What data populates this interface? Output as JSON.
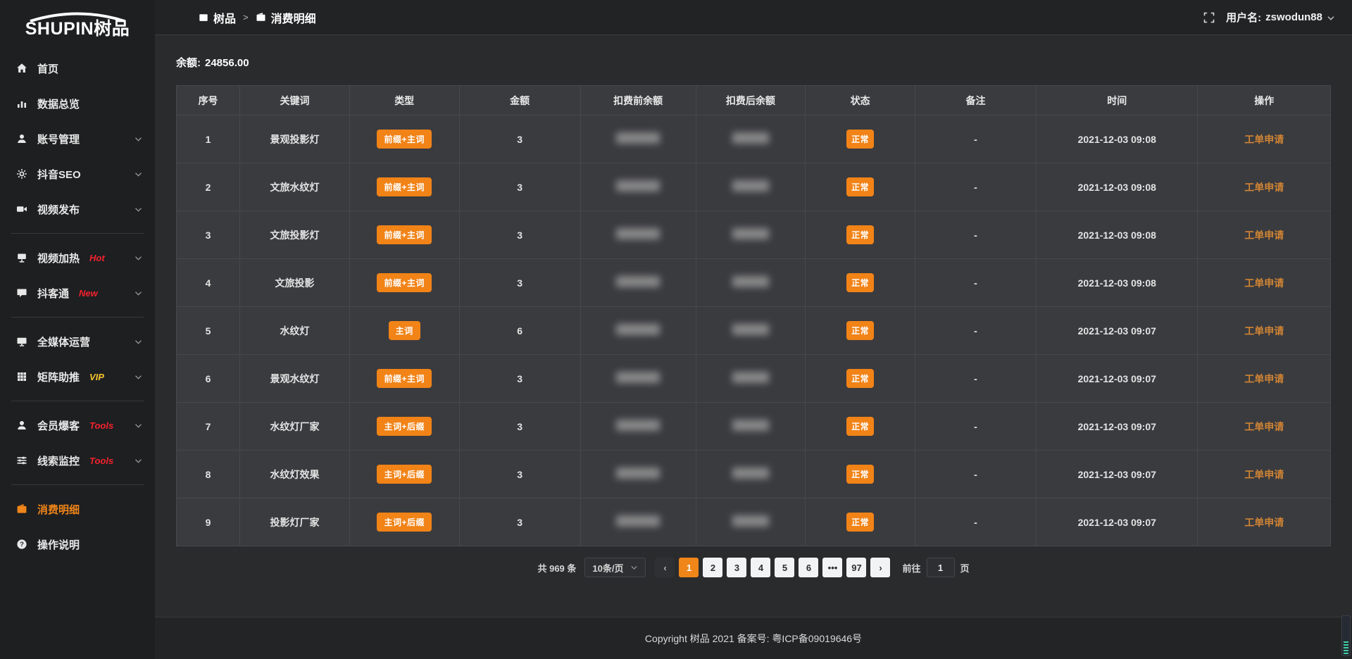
{
  "app": {
    "logo_text": "SHUPIN",
    "logo_cn": "树品"
  },
  "topbar": {
    "breadcrumb": [
      {
        "label": "树品"
      },
      {
        "label": "消费明细"
      }
    ],
    "separator": ">",
    "username_label": "用户名:",
    "username": "zswodun88"
  },
  "sidebar": {
    "items": [
      {
        "id": "home",
        "icon": "home-icon",
        "label": "首页"
      },
      {
        "id": "data-overview",
        "icon": "chart-icon",
        "label": "数据总览"
      },
      {
        "id": "account-manage",
        "icon": "user-icon",
        "label": "账号管理",
        "chevron": true
      },
      {
        "id": "douyin-seo",
        "icon": "gear-icon",
        "label": "抖音SEO",
        "chevron": true
      },
      {
        "id": "video-publish",
        "icon": "video-icon",
        "label": "视频发布",
        "chevron": true
      },
      {
        "type": "divider"
      },
      {
        "id": "video-heat",
        "icon": "display-icon",
        "label": "视频加热",
        "badge": "Hot",
        "badge_color": "#f5222d",
        "chevron": true
      },
      {
        "id": "douketong",
        "icon": "comment-icon",
        "label": "抖客通",
        "badge": "New",
        "badge_color": "#f5222d",
        "chevron": true
      },
      {
        "type": "divider"
      },
      {
        "id": "media-operation",
        "icon": "monitor-icon",
        "label": "全媒体运营",
        "chevron": true
      },
      {
        "id": "matrix-boost",
        "icon": "grid-icon",
        "label": "矩阵助推",
        "badge": "VIP",
        "badge_color": "#f7c52c",
        "chevron": true
      },
      {
        "type": "divider"
      },
      {
        "id": "member-baoke",
        "icon": "user-icon",
        "label": "会员爆客",
        "badge": "Tools",
        "badge_color": "#f5222d",
        "chevron": true
      },
      {
        "id": "clue-monitor",
        "icon": "sliders-icon",
        "label": "线索监控",
        "badge": "Tools",
        "badge_color": "#f5222d",
        "chevron": true
      },
      {
        "type": "divider"
      },
      {
        "id": "consumption-detail",
        "icon": "wallet-icon",
        "label": "消费明细",
        "active": true
      },
      {
        "id": "instructions",
        "icon": "question-icon",
        "label": "操作说明"
      }
    ]
  },
  "main": {
    "balance_label": "余额:",
    "balance_value": "24856.00",
    "table": {
      "columns": [
        "序号",
        "关键词",
        "类型",
        "金额",
        "扣费前余额",
        "扣费后余额",
        "状态",
        "备注",
        "时间",
        "操作"
      ],
      "rows": [
        {
          "index": "1",
          "keyword": "景观投影灯",
          "type": "前缀+主词",
          "amount": "3",
          "status": "正常",
          "remark": "-",
          "time": "2021-12-03 09:08",
          "action": "工单申请"
        },
        {
          "index": "2",
          "keyword": "文旅水纹灯",
          "type": "前缀+主词",
          "amount": "3",
          "status": "正常",
          "remark": "-",
          "time": "2021-12-03 09:08",
          "action": "工单申请"
        },
        {
          "index": "3",
          "keyword": "文旅投影灯",
          "type": "前缀+主词",
          "amount": "3",
          "status": "正常",
          "remark": "-",
          "time": "2021-12-03 09:08",
          "action": "工单申请"
        },
        {
          "index": "4",
          "keyword": "文旅投影",
          "type": "前缀+主词",
          "amount": "3",
          "status": "正常",
          "remark": "-",
          "time": "2021-12-03 09:08",
          "action": "工单申请"
        },
        {
          "index": "5",
          "keyword": "水纹灯",
          "type": "主词",
          "amount": "6",
          "status": "正常",
          "remark": "-",
          "time": "2021-12-03 09:07",
          "action": "工单申请"
        },
        {
          "index": "6",
          "keyword": "景观水纹灯",
          "type": "前缀+主词",
          "amount": "3",
          "status": "正常",
          "remark": "-",
          "time": "2021-12-03 09:07",
          "action": "工单申请"
        },
        {
          "index": "7",
          "keyword": "水纹灯厂家",
          "type": "主词+后缀",
          "amount": "3",
          "status": "正常",
          "remark": "-",
          "time": "2021-12-03 09:07",
          "action": "工单申请"
        },
        {
          "index": "8",
          "keyword": "水纹灯效果",
          "type": "主词+后缀",
          "amount": "3",
          "status": "正常",
          "remark": "-",
          "time": "2021-12-03 09:07",
          "action": "工单申请"
        },
        {
          "index": "9",
          "keyword": "投影灯厂家",
          "type": "主词+后缀",
          "amount": "3",
          "status": "正常",
          "remark": "-",
          "time": "2021-12-03 09:07",
          "action": "工单申请"
        }
      ]
    },
    "pagination": {
      "total_label": "共 969 条",
      "page_size": "10条/页",
      "pages": [
        "1",
        "2",
        "3",
        "4",
        "5",
        "6",
        "•••",
        "97"
      ],
      "active": "1",
      "goto_label": "前往",
      "goto_value": "1",
      "page_suffix": "页"
    }
  },
  "footer": {
    "text": "Copyright 树品 2021 备案号: 粤ICP备09019646号"
  }
}
